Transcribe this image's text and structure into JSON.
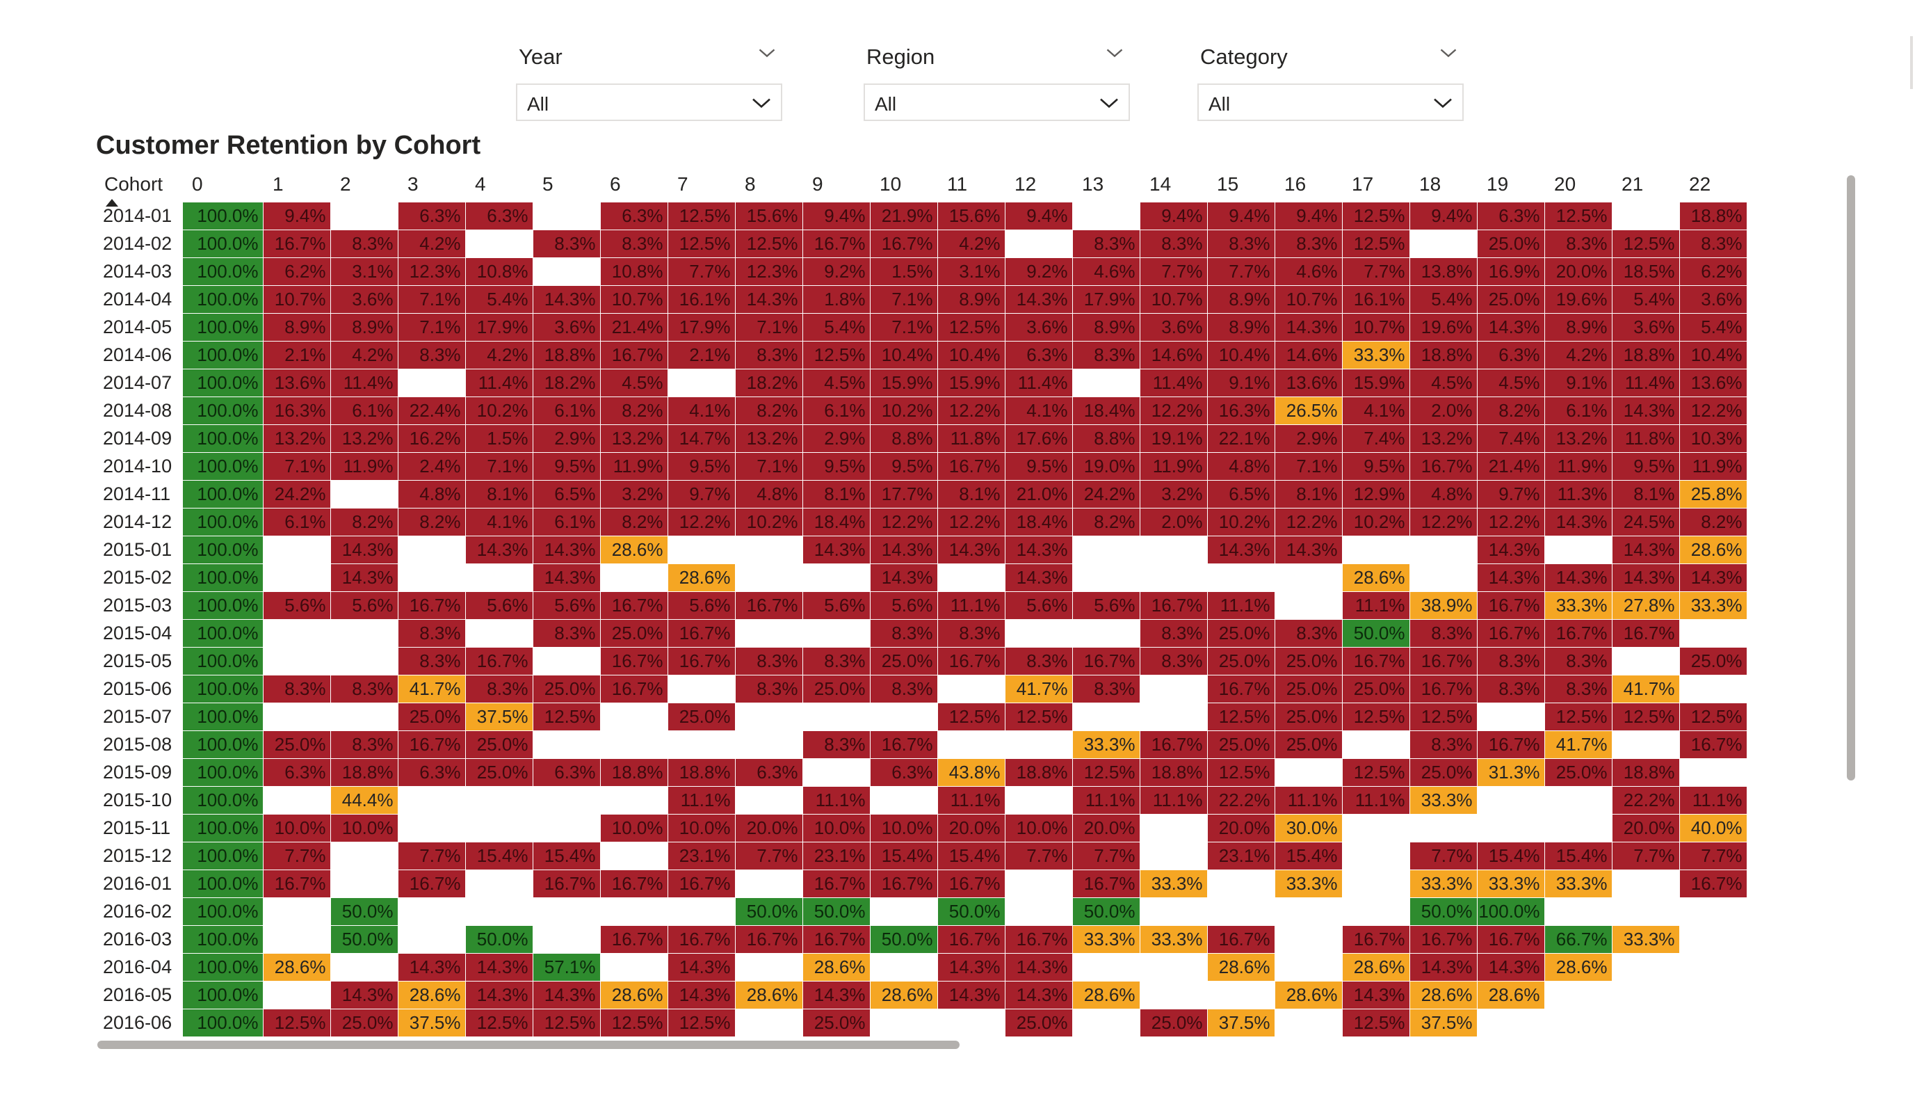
{
  "slicers": [
    {
      "title": "Year",
      "value": "All"
    },
    {
      "title": "Region",
      "value": "All"
    },
    {
      "title": "Category",
      "value": "All"
    }
  ],
  "visual_title": "Customer Retention by Cohort",
  "colors": {
    "low": "#a6202b",
    "mid": "#f5a623",
    "high": "#2e8b2e",
    "empty": "#ffffff"
  },
  "icons": {
    "slicer_chevron": "chevron-down-icon",
    "sort_indicator": "sort-ascending-icon"
  },
  "matrix": {
    "row_header": "Cohort",
    "columns": [
      "0",
      "1",
      "2",
      "3",
      "4",
      "5",
      "6",
      "7",
      "8",
      "9",
      "10",
      "11",
      "12",
      "13",
      "14",
      "15",
      "16",
      "17",
      "18",
      "19",
      "20",
      "21",
      "22"
    ],
    "rows": [
      {
        "cohort": "2014-01",
        "values": [
          "100.0%",
          "9.4%",
          "",
          "6.3%",
          "6.3%",
          "",
          "6.3%",
          "12.5%",
          "15.6%",
          "9.4%",
          "21.9%",
          "15.6%",
          "9.4%",
          "",
          "9.4%",
          "9.4%",
          "9.4%",
          "12.5%",
          "9.4%",
          "6.3%",
          "12.5%",
          "",
          "18.8%"
        ]
      },
      {
        "cohort": "2014-02",
        "values": [
          "100.0%",
          "16.7%",
          "8.3%",
          "4.2%",
          "",
          "8.3%",
          "8.3%",
          "12.5%",
          "12.5%",
          "16.7%",
          "16.7%",
          "4.2%",
          "",
          "8.3%",
          "8.3%",
          "8.3%",
          "8.3%",
          "12.5%",
          "",
          "25.0%",
          "8.3%",
          "12.5%",
          "8.3%"
        ]
      },
      {
        "cohort": "2014-03",
        "values": [
          "100.0%",
          "6.2%",
          "3.1%",
          "12.3%",
          "10.8%",
          "",
          "10.8%",
          "7.7%",
          "12.3%",
          "9.2%",
          "1.5%",
          "3.1%",
          "9.2%",
          "4.6%",
          "7.7%",
          "7.7%",
          "4.6%",
          "7.7%",
          "13.8%",
          "16.9%",
          "20.0%",
          "18.5%",
          "6.2%"
        ]
      },
      {
        "cohort": "2014-04",
        "values": [
          "100.0%",
          "10.7%",
          "3.6%",
          "7.1%",
          "5.4%",
          "14.3%",
          "10.7%",
          "16.1%",
          "14.3%",
          "1.8%",
          "7.1%",
          "8.9%",
          "14.3%",
          "17.9%",
          "10.7%",
          "8.9%",
          "10.7%",
          "16.1%",
          "5.4%",
          "25.0%",
          "19.6%",
          "5.4%",
          "3.6%"
        ]
      },
      {
        "cohort": "2014-05",
        "values": [
          "100.0%",
          "8.9%",
          "8.9%",
          "7.1%",
          "17.9%",
          "3.6%",
          "21.4%",
          "17.9%",
          "7.1%",
          "5.4%",
          "7.1%",
          "12.5%",
          "3.6%",
          "8.9%",
          "3.6%",
          "8.9%",
          "14.3%",
          "10.7%",
          "19.6%",
          "14.3%",
          "8.9%",
          "3.6%",
          "5.4%"
        ]
      },
      {
        "cohort": "2014-06",
        "values": [
          "100.0%",
          "2.1%",
          "4.2%",
          "8.3%",
          "4.2%",
          "18.8%",
          "16.7%",
          "2.1%",
          "8.3%",
          "12.5%",
          "10.4%",
          "10.4%",
          "6.3%",
          "8.3%",
          "14.6%",
          "10.4%",
          "14.6%",
          "33.3%",
          "18.8%",
          "6.3%",
          "4.2%",
          "18.8%",
          "10.4%"
        ]
      },
      {
        "cohort": "2014-07",
        "values": [
          "100.0%",
          "13.6%",
          "11.4%",
          "",
          "11.4%",
          "18.2%",
          "4.5%",
          "",
          "18.2%",
          "4.5%",
          "15.9%",
          "15.9%",
          "11.4%",
          "",
          "11.4%",
          "9.1%",
          "13.6%",
          "15.9%",
          "4.5%",
          "4.5%",
          "9.1%",
          "11.4%",
          "13.6%"
        ]
      },
      {
        "cohort": "2014-08",
        "values": [
          "100.0%",
          "16.3%",
          "6.1%",
          "22.4%",
          "10.2%",
          "6.1%",
          "8.2%",
          "4.1%",
          "8.2%",
          "6.1%",
          "10.2%",
          "12.2%",
          "4.1%",
          "18.4%",
          "12.2%",
          "16.3%",
          "26.5%",
          "4.1%",
          "2.0%",
          "8.2%",
          "6.1%",
          "14.3%",
          "12.2%"
        ]
      },
      {
        "cohort": "2014-09",
        "values": [
          "100.0%",
          "13.2%",
          "13.2%",
          "16.2%",
          "1.5%",
          "2.9%",
          "13.2%",
          "14.7%",
          "13.2%",
          "2.9%",
          "8.8%",
          "11.8%",
          "17.6%",
          "8.8%",
          "19.1%",
          "22.1%",
          "2.9%",
          "7.4%",
          "13.2%",
          "7.4%",
          "13.2%",
          "11.8%",
          "10.3%"
        ]
      },
      {
        "cohort": "2014-10",
        "values": [
          "100.0%",
          "7.1%",
          "11.9%",
          "2.4%",
          "7.1%",
          "9.5%",
          "11.9%",
          "9.5%",
          "7.1%",
          "9.5%",
          "9.5%",
          "16.7%",
          "9.5%",
          "19.0%",
          "11.9%",
          "4.8%",
          "7.1%",
          "9.5%",
          "16.7%",
          "21.4%",
          "11.9%",
          "9.5%",
          "11.9%"
        ]
      },
      {
        "cohort": "2014-11",
        "values": [
          "100.0%",
          "24.2%",
          "",
          "4.8%",
          "8.1%",
          "6.5%",
          "3.2%",
          "9.7%",
          "4.8%",
          "8.1%",
          "17.7%",
          "8.1%",
          "21.0%",
          "24.2%",
          "3.2%",
          "6.5%",
          "8.1%",
          "12.9%",
          "4.8%",
          "9.7%",
          "11.3%",
          "8.1%",
          "25.8%"
        ]
      },
      {
        "cohort": "2014-12",
        "values": [
          "100.0%",
          "6.1%",
          "8.2%",
          "8.2%",
          "4.1%",
          "6.1%",
          "8.2%",
          "12.2%",
          "10.2%",
          "18.4%",
          "12.2%",
          "12.2%",
          "18.4%",
          "8.2%",
          "2.0%",
          "10.2%",
          "12.2%",
          "10.2%",
          "12.2%",
          "12.2%",
          "14.3%",
          "24.5%",
          "8.2%"
        ]
      },
      {
        "cohort": "2015-01",
        "values": [
          "100.0%",
          "",
          "14.3%",
          "",
          "14.3%",
          "14.3%",
          "28.6%",
          "",
          "",
          "14.3%",
          "14.3%",
          "14.3%",
          "14.3%",
          "",
          "",
          "14.3%",
          "14.3%",
          "",
          "",
          "14.3%",
          "",
          "14.3%",
          "28.6%"
        ]
      },
      {
        "cohort": "2015-02",
        "values": [
          "100.0%",
          "",
          "14.3%",
          "",
          "",
          "14.3%",
          "",
          "28.6%",
          "",
          "",
          "14.3%",
          "",
          "14.3%",
          "",
          "",
          "",
          "",
          "28.6%",
          "",
          "14.3%",
          "14.3%",
          "14.3%",
          "14.3%"
        ]
      },
      {
        "cohort": "2015-03",
        "values": [
          "100.0%",
          "5.6%",
          "5.6%",
          "16.7%",
          "5.6%",
          "5.6%",
          "16.7%",
          "5.6%",
          "16.7%",
          "5.6%",
          "5.6%",
          "11.1%",
          "5.6%",
          "5.6%",
          "16.7%",
          "11.1%",
          "",
          "11.1%",
          "38.9%",
          "16.7%",
          "33.3%",
          "27.8%",
          "33.3%"
        ]
      },
      {
        "cohort": "2015-04",
        "values": [
          "100.0%",
          "",
          "",
          "8.3%",
          "",
          "8.3%",
          "25.0%",
          "16.7%",
          "",
          "",
          "8.3%",
          "8.3%",
          "",
          "",
          "8.3%",
          "25.0%",
          "8.3%",
          "50.0%",
          "8.3%",
          "16.7%",
          "16.7%",
          "16.7%",
          ""
        ]
      },
      {
        "cohort": "2015-05",
        "values": [
          "100.0%",
          "",
          "",
          "8.3%",
          "16.7%",
          "",
          "16.7%",
          "16.7%",
          "8.3%",
          "8.3%",
          "25.0%",
          "16.7%",
          "8.3%",
          "16.7%",
          "8.3%",
          "25.0%",
          "25.0%",
          "16.7%",
          "16.7%",
          "8.3%",
          "8.3%",
          "",
          "25.0%"
        ]
      },
      {
        "cohort": "2015-06",
        "values": [
          "100.0%",
          "8.3%",
          "8.3%",
          "41.7%",
          "8.3%",
          "25.0%",
          "16.7%",
          "",
          "8.3%",
          "25.0%",
          "8.3%",
          "",
          "41.7%",
          "8.3%",
          "",
          "16.7%",
          "25.0%",
          "25.0%",
          "16.7%",
          "8.3%",
          "8.3%",
          "41.7%",
          ""
        ]
      },
      {
        "cohort": "2015-07",
        "values": [
          "100.0%",
          "",
          "",
          "25.0%",
          "37.5%",
          "12.5%",
          "",
          "25.0%",
          "",
          "",
          "",
          "12.5%",
          "12.5%",
          "",
          "",
          "12.5%",
          "25.0%",
          "12.5%",
          "12.5%",
          "",
          "12.5%",
          "12.5%",
          "12.5%"
        ]
      },
      {
        "cohort": "2015-08",
        "values": [
          "100.0%",
          "25.0%",
          "8.3%",
          "16.7%",
          "25.0%",
          "",
          "",
          "",
          "",
          "8.3%",
          "16.7%",
          "",
          "",
          "33.3%",
          "16.7%",
          "25.0%",
          "25.0%",
          "",
          "8.3%",
          "16.7%",
          "41.7%",
          "",
          "16.7%"
        ]
      },
      {
        "cohort": "2015-09",
        "values": [
          "100.0%",
          "6.3%",
          "18.8%",
          "6.3%",
          "25.0%",
          "6.3%",
          "18.8%",
          "18.8%",
          "6.3%",
          "",
          "6.3%",
          "43.8%",
          "18.8%",
          "12.5%",
          "18.8%",
          "12.5%",
          "",
          "12.5%",
          "25.0%",
          "31.3%",
          "25.0%",
          "18.8%",
          ""
        ]
      },
      {
        "cohort": "2015-10",
        "values": [
          "100.0%",
          "",
          "44.4%",
          "",
          "",
          "",
          "",
          "11.1%",
          "",
          "11.1%",
          "",
          "11.1%",
          "",
          "11.1%",
          "11.1%",
          "22.2%",
          "11.1%",
          "11.1%",
          "33.3%",
          "",
          "",
          "22.2%",
          "11.1%"
        ]
      },
      {
        "cohort": "2015-11",
        "values": [
          "100.0%",
          "10.0%",
          "10.0%",
          "",
          "",
          "",
          "10.0%",
          "10.0%",
          "20.0%",
          "10.0%",
          "10.0%",
          "20.0%",
          "10.0%",
          "20.0%",
          "",
          "20.0%",
          "30.0%",
          "",
          "",
          "",
          "",
          "20.0%",
          "40.0%"
        ]
      },
      {
        "cohort": "2015-12",
        "values": [
          "100.0%",
          "7.7%",
          "",
          "7.7%",
          "15.4%",
          "15.4%",
          "",
          "23.1%",
          "7.7%",
          "23.1%",
          "15.4%",
          "15.4%",
          "7.7%",
          "7.7%",
          "",
          "23.1%",
          "15.4%",
          "",
          "7.7%",
          "15.4%",
          "15.4%",
          "7.7%",
          "7.7%"
        ]
      },
      {
        "cohort": "2016-01",
        "values": [
          "100.0%",
          "16.7%",
          "",
          "16.7%",
          "",
          "16.7%",
          "16.7%",
          "16.7%",
          "",
          "16.7%",
          "16.7%",
          "16.7%",
          "",
          "16.7%",
          "33.3%",
          "",
          "33.3%",
          "",
          "33.3%",
          "33.3%",
          "33.3%",
          "",
          "16.7%"
        ]
      },
      {
        "cohort": "2016-02",
        "values": [
          "100.0%",
          "",
          "50.0%",
          "",
          "",
          "",
          "",
          "",
          "50.0%",
          "50.0%",
          "",
          "50.0%",
          "",
          "50.0%",
          "",
          "",
          "",
          "",
          "50.0%",
          "100.0%",
          "",
          "",
          ""
        ]
      },
      {
        "cohort": "2016-03",
        "values": [
          "100.0%",
          "",
          "50.0%",
          "",
          "50.0%",
          "",
          "16.7%",
          "16.7%",
          "16.7%",
          "16.7%",
          "50.0%",
          "16.7%",
          "16.7%",
          "33.3%",
          "33.3%",
          "16.7%",
          "",
          "16.7%",
          "16.7%",
          "16.7%",
          "66.7%",
          "33.3%",
          ""
        ]
      },
      {
        "cohort": "2016-04",
        "values": [
          "100.0%",
          "28.6%",
          "",
          "14.3%",
          "14.3%",
          "57.1%",
          "",
          "14.3%",
          "",
          "28.6%",
          "",
          "14.3%",
          "14.3%",
          "",
          "",
          "28.6%",
          "",
          "28.6%",
          "14.3%",
          "14.3%",
          "28.6%",
          "",
          ""
        ]
      },
      {
        "cohort": "2016-05",
        "values": [
          "100.0%",
          "",
          "14.3%",
          "28.6%",
          "14.3%",
          "14.3%",
          "28.6%",
          "14.3%",
          "28.6%",
          "14.3%",
          "28.6%",
          "14.3%",
          "14.3%",
          "28.6%",
          "",
          "",
          "28.6%",
          "14.3%",
          "28.6%",
          "28.6%",
          "",
          "",
          ""
        ]
      },
      {
        "cohort": "2016-06",
        "values": [
          "100.0%",
          "12.5%",
          "25.0%",
          "37.5%",
          "12.5%",
          "12.5%",
          "12.5%",
          "12.5%",
          "",
          "25.0%",
          "",
          "",
          "25.0%",
          "",
          "25.0%",
          "37.5%",
          "",
          "12.5%",
          "37.5%",
          "",
          "",
          "",
          ""
        ]
      }
    ]
  }
}
